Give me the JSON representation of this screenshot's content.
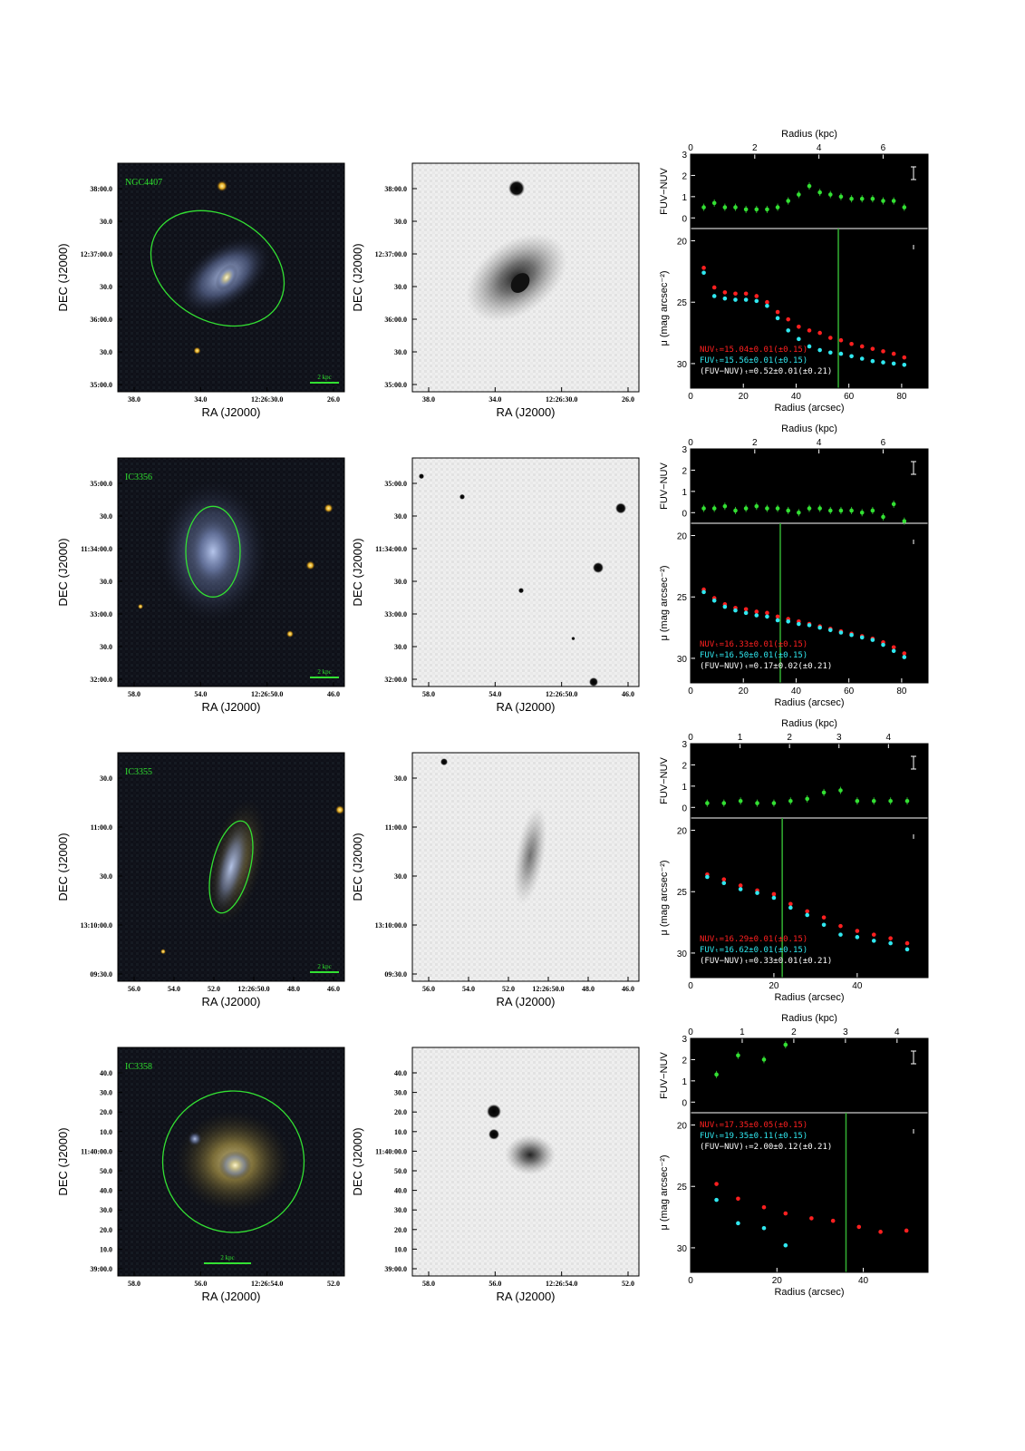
{
  "rows": [
    {
      "galaxy": "NGC4407",
      "dec_label": "DEC (J2000)",
      "ra_label": "RA (J2000)",
      "dec_ticks": [
        "38:00.0",
        "30.0",
        "12:37:00.0",
        "30.0",
        "36:00.0",
        "30.0",
        "35:00.0"
      ],
      "ra_ticks": [
        "38.0",
        "34.0",
        "12:26:30.0",
        "26.0"
      ],
      "scale_label": "2 kpc",
      "stars_color": [
        {
          "fx": 0.46,
          "fy": 0.1,
          "r": 6
        },
        {
          "fx": 0.35,
          "fy": 0.82,
          "r": 4
        }
      ],
      "stars_gray": [
        {
          "fx": 0.46,
          "fy": 0.11,
          "r": 9
        }
      ],
      "gray_blob": {
        "fx": 0.46,
        "fy": 0.5,
        "rx": 62,
        "ry": 40,
        "rot": -35
      },
      "ellipse": {
        "fx": 0.44,
        "fy": 0.46,
        "rx": 78,
        "ry": 58,
        "rot": 30
      },
      "chart_data": {
        "type": "scatter",
        "x_top_label": "Radius (kpc)",
        "x_top_ticks": [
          "0",
          "2",
          "4",
          "6"
        ],
        "x_top_max": 7.4,
        "xlabel": "Radius (arcsec)",
        "xlim": [
          0,
          90
        ],
        "x_ticks": [
          "0",
          "20",
          "40",
          "60",
          "80"
        ],
        "color_ylabel": "FUV−NUV",
        "color_ylim": [
          -0.5,
          3.0
        ],
        "color_ticks": [
          "0",
          "1",
          "2",
          "3"
        ],
        "mu_ylabel": "μ (mag arcsec⁻²)",
        "mu_ylim": [
          19,
          32
        ],
        "mu_ticks": [
          "20",
          "25",
          "30"
        ],
        "vline_arcsec": 56,
        "legend": [
          "NUVₜ=15.04±0.01(±0.15)",
          "FUVₜ=15.56±0.01(±0.15)",
          "(FUV−NUV)ₜ=0.52±0.01(±0.21)"
        ],
        "color_series": {
          "x": [
            5,
            9,
            13,
            17,
            21,
            25,
            29,
            33,
            37,
            41,
            45,
            49,
            53,
            57,
            61,
            65,
            69,
            73,
            77,
            81
          ],
          "y": [
            0.5,
            0.7,
            0.5,
            0.5,
            0.4,
            0.4,
            0.4,
            0.5,
            0.8,
            1.1,
            1.5,
            1.2,
            1.1,
            1.0,
            0.9,
            0.9,
            0.9,
            0.8,
            0.8,
            0.5
          ]
        },
        "nuv_series": {
          "x": [
            5,
            9,
            13,
            17,
            21,
            25,
            29,
            33,
            37,
            41,
            45,
            49,
            53,
            57,
            61,
            65,
            69,
            73,
            77,
            81
          ],
          "y": [
            22.2,
            23.8,
            24.2,
            24.3,
            24.3,
            24.5,
            25.0,
            25.8,
            26.4,
            27.0,
            27.3,
            27.5,
            27.9,
            28.1,
            28.4,
            28.6,
            28.8,
            29.0,
            29.2,
            29.5
          ]
        },
        "fuv_series": {
          "x": [
            5,
            9,
            13,
            17,
            21,
            25,
            29,
            33,
            37,
            41,
            45,
            49,
            53,
            57,
            61,
            65,
            69,
            73,
            77,
            81
          ],
          "y": [
            22.6,
            24.5,
            24.7,
            24.8,
            24.8,
            24.9,
            25.3,
            26.3,
            27.3,
            28.0,
            28.6,
            28.9,
            29.1,
            29.2,
            29.4,
            29.6,
            29.8,
            29.9,
            30.0,
            30.1
          ]
        }
      }
    },
    {
      "galaxy": "IC3356",
      "dec_label": "DEC (J2000)",
      "ra_label": "RA (J2000)",
      "dec_ticks": [
        "35:00.0",
        "30.0",
        "11:34:00.0",
        "30.0",
        "33:00.0",
        "30.0",
        "32:00.0"
      ],
      "ra_ticks": [
        "58.0",
        "54.0",
        "12:26:50.0",
        "46.0"
      ],
      "scale_label": "2 kpc",
      "stars_color": [
        {
          "fx": 0.93,
          "fy": 0.22,
          "r": 5
        },
        {
          "fx": 0.85,
          "fy": 0.47,
          "r": 5
        },
        {
          "fx": 0.76,
          "fy": 0.77,
          "r": 4
        },
        {
          "fx": 0.1,
          "fy": 0.65,
          "r": 3
        }
      ],
      "stars_gray": [
        {
          "fx": 0.22,
          "fy": 0.17,
          "r": 3
        },
        {
          "fx": 0.92,
          "fy": 0.22,
          "r": 6
        },
        {
          "fx": 0.04,
          "fy": 0.08,
          "r": 3
        },
        {
          "fx": 0.82,
          "fy": 0.48,
          "r": 6
        },
        {
          "fx": 0.48,
          "fy": 0.58,
          "r": 3
        },
        {
          "fx": 0.71,
          "fy": 0.79,
          "r": 2
        },
        {
          "fx": 0.8,
          "fy": 0.98,
          "r": 5
        }
      ],
      "gray_blob": null,
      "ellipse": {
        "fx": 0.42,
        "fy": 0.41,
        "rx": 30,
        "ry": 50,
        "rot": 0
      },
      "chart_data": {
        "type": "scatter",
        "x_top_label": "Radius (kpc)",
        "x_top_ticks": [
          "0",
          "2",
          "4",
          "6"
        ],
        "x_top_max": 7.4,
        "xlabel": "Radius (arcsec)",
        "xlim": [
          0,
          90
        ],
        "x_ticks": [
          "0",
          "20",
          "40",
          "60",
          "80"
        ],
        "color_ylabel": "FUV−NUV",
        "color_ylim": [
          -0.5,
          3.0
        ],
        "color_ticks": [
          "0",
          "1",
          "2",
          "3"
        ],
        "mu_ylabel": "μ (mag arcsec⁻²)",
        "mu_ylim": [
          19,
          32
        ],
        "mu_ticks": [
          "20",
          "25",
          "30"
        ],
        "vline_arcsec": 34,
        "legend": [
          "NUVₜ=16.33±0.01(±0.15)",
          "FUVₜ=16.50±0.01(±0.15)",
          "(FUV−NUV)ₜ=0.17±0.02(±0.21)"
        ],
        "color_series": {
          "x": [
            5,
            9,
            13,
            17,
            21,
            25,
            29,
            33,
            37,
            41,
            45,
            49,
            53,
            57,
            61,
            65,
            69,
            73,
            77,
            81
          ],
          "y": [
            0.2,
            0.2,
            0.3,
            0.1,
            0.2,
            0.3,
            0.2,
            0.2,
            0.1,
            0.0,
            0.2,
            0.2,
            0.1,
            0.1,
            0.1,
            0.0,
            0.1,
            -0.2,
            0.4,
            -0.4
          ]
        },
        "nuv_series": {
          "x": [
            5,
            9,
            13,
            17,
            21,
            25,
            29,
            33,
            37,
            41,
            45,
            49,
            53,
            57,
            61,
            65,
            69,
            73,
            77,
            81
          ],
          "y": [
            24.4,
            25.1,
            25.6,
            25.9,
            26.0,
            26.2,
            26.3,
            26.6,
            26.8,
            27.0,
            27.2,
            27.4,
            27.6,
            27.8,
            28.0,
            28.2,
            28.4,
            28.7,
            29.1,
            29.6
          ]
        },
        "fuv_series": {
          "x": [
            5,
            9,
            13,
            17,
            21,
            25,
            29,
            33,
            37,
            41,
            45,
            49,
            53,
            57,
            61,
            65,
            69,
            73,
            77,
            81
          ],
          "y": [
            24.6,
            25.3,
            25.8,
            26.1,
            26.3,
            26.5,
            26.6,
            26.9,
            27.0,
            27.2,
            27.3,
            27.5,
            27.7,
            27.9,
            28.1,
            28.3,
            28.5,
            28.9,
            29.4,
            29.9
          ]
        }
      }
    },
    {
      "galaxy": "IC3355",
      "dec_label": "DEC (J2000)",
      "ra_label": "RA (J2000)",
      "dec_ticks": [
        "30.0",
        "11:00.0",
        "30.0",
        "13:10:00.0",
        "09:30.0"
      ],
      "ra_ticks": [
        "56.0",
        "54.0",
        "52.0",
        "12:26:50.0",
        "48.0",
        "46.0"
      ],
      "scale_label": "2 kpc",
      "stars_color": [
        {
          "fx": 0.98,
          "fy": 0.25,
          "r": 5
        },
        {
          "fx": 0.2,
          "fy": 0.87,
          "r": 3
        }
      ],
      "stars_gray": [
        {
          "fx": 0.14,
          "fy": 0.04,
          "r": 4
        }
      ],
      "gray_blob": {
        "fx": 0.52,
        "fy": 0.45,
        "rx": 16,
        "ry": 55,
        "rot": 10
      },
      "ellipse": {
        "fx": 0.5,
        "fy": 0.5,
        "rx": 21,
        "ry": 52,
        "rot": 14
      },
      "chart_data": {
        "type": "scatter",
        "x_top_label": "Radius (kpc)",
        "x_top_ticks": [
          "0",
          "1",
          "2",
          "3",
          "4"
        ],
        "x_top_max": 4.8,
        "xlabel": "Radius (arcsec)",
        "xlim": [
          0,
          57
        ],
        "x_ticks": [
          "0",
          "20",
          "40"
        ],
        "color_ylabel": "FUV−NUV",
        "color_ylim": [
          -0.5,
          3.0
        ],
        "color_ticks": [
          "0",
          "1",
          "2",
          "3"
        ],
        "mu_ylabel": "μ (mag arcsec⁻²)",
        "mu_ylim": [
          19,
          32
        ],
        "mu_ticks": [
          "20",
          "25",
          "30"
        ],
        "vline_arcsec": 22,
        "legend": [
          "NUVₜ=16.29±0.01(±0.15)",
          "FUVₜ=16.62±0.01(±0.15)",
          "(FUV−NUV)ₜ=0.33±0.01(±0.21)"
        ],
        "color_series": {
          "x": [
            4,
            8,
            12,
            16,
            20,
            24,
            28,
            32,
            36,
            40,
            44,
            48,
            52
          ],
          "y": [
            0.2,
            0.2,
            0.3,
            0.2,
            0.2,
            0.3,
            0.4,
            0.7,
            0.8,
            0.3,
            0.3,
            0.3,
            0.3
          ]
        },
        "nuv_series": {
          "x": [
            4,
            8,
            12,
            16,
            20,
            24,
            28,
            32,
            36,
            40,
            44,
            48,
            52
          ],
          "y": [
            23.6,
            24.0,
            24.5,
            24.9,
            25.2,
            26.0,
            26.6,
            27.1,
            27.8,
            28.2,
            28.5,
            28.8,
            29.2
          ]
        },
        "fuv_series": {
          "x": [
            4,
            8,
            12,
            16,
            20,
            24,
            28,
            32,
            36,
            40,
            44,
            48,
            52
          ],
          "y": [
            23.8,
            24.3,
            24.8,
            25.1,
            25.5,
            26.3,
            26.9,
            27.7,
            28.5,
            28.7,
            29.0,
            29.2,
            29.7
          ]
        }
      }
    },
    {
      "galaxy": "IC3358",
      "dec_label": "DEC (J2000)",
      "ra_label": "RA (J2000)",
      "dec_ticks": [
        "40.0",
        "30.0",
        "20.0",
        "10.0",
        "11:40:00.0",
        "50.0",
        "40.0",
        "30.0",
        "20.0",
        "10.0",
        "39:00.0"
      ],
      "ra_ticks": [
        "58.0",
        "56.0",
        "12:26:54.0",
        "52.0"
      ],
      "scale_label": "2 kpc",
      "stars_color": [
        {
          "fx": 0.34,
          "fy": 0.4,
          "r": 8
        }
      ],
      "stars_gray": [
        {
          "fx": 0.36,
          "fy": 0.28,
          "r": 8
        },
        {
          "fx": 0.36,
          "fy": 0.38,
          "r": 6
        }
      ],
      "gray_blob": {
        "fx": 0.52,
        "fy": 0.47,
        "rx": 28,
        "ry": 22,
        "rot": 0
      },
      "ellipse": {
        "fx": 0.51,
        "fy": 0.5,
        "rx": 78,
        "ry": 78,
        "rot": 0
      },
      "chart_data": {
        "type": "scatter",
        "x_top_label": "Radius (kpc)",
        "x_top_ticks": [
          "0",
          "1",
          "2",
          "3",
          "4"
        ],
        "x_top_max": 4.6,
        "xlabel": "Radius (arcsec)",
        "xlim": [
          0,
          55
        ],
        "x_ticks": [
          "0",
          "20",
          "40"
        ],
        "color_ylabel": "FUV−NUV",
        "color_ylim": [
          -0.5,
          3.0
        ],
        "color_ticks": [
          "0",
          "1",
          "2",
          "3"
        ],
        "mu_ylabel": "μ (mag arcsec⁻²)",
        "mu_ylim": [
          19,
          32
        ],
        "mu_ticks": [
          "20",
          "25",
          "30"
        ],
        "vline_arcsec": 36,
        "legend": [
          "NUVₜ=17.35±0.05(±0.15)",
          "FUVₜ=19.35±0.11(±0.15)",
          "(FUV−NUV)ₜ=2.00±0.12(±0.21)"
        ],
        "color_series": {
          "x": [
            6,
            11,
            17,
            22
          ],
          "y": [
            1.3,
            2.2,
            2.0,
            2.7
          ]
        },
        "nuv_series": {
          "x": [
            6,
            11,
            17,
            22,
            28,
            33,
            39,
            44,
            50
          ],
          "y": [
            24.8,
            26.0,
            26.7,
            27.2,
            27.6,
            27.8,
            28.3,
            28.7,
            28.6
          ]
        },
        "fuv_series": {
          "x": [
            6,
            11,
            17,
            22
          ],
          "y": [
            26.1,
            28.0,
            28.4,
            29.8
          ]
        }
      }
    }
  ]
}
